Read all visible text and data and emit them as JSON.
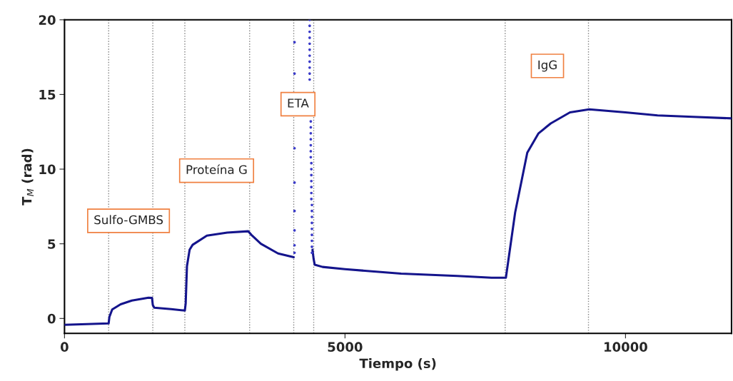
{
  "chart_data": {
    "type": "line",
    "xlabel": "Tiempo (s)",
    "ylabel": "T$_{M}$ (rad)",
    "xlim": [
      0,
      11890
    ],
    "xticks": [
      0,
      5000,
      10000
    ],
    "ylim": [
      -1,
      20
    ],
    "yticks": [
      0,
      5,
      10,
      15,
      20
    ],
    "grid": false,
    "series": [
      {
        "color": "#14148c",
        "x": [
          0,
          400,
          787,
          800,
          850,
          1000,
          1200,
          1497,
          1560,
          1574,
          1600,
          1900,
          2145,
          2160,
          2183,
          2230,
          2284,
          2538,
          2900,
          3274,
          3330,
          3500,
          3807,
          4086,
          null,
          4420,
          4440,
          4460,
          4600,
          5000,
          6000,
          7000,
          7614,
          7868,
          8033,
          8249,
          8450,
          8667,
          9010,
          9353,
          10000,
          10571,
          11200,
          11890
        ],
        "values": [
          -0.43,
          -0.38,
          -0.33,
          0.1,
          0.6,
          0.95,
          1.2,
          1.39,
          1.38,
          0.9,
          0.72,
          0.62,
          0.53,
          1.0,
          3.5,
          4.6,
          4.93,
          5.55,
          5.75,
          5.84,
          5.6,
          5.0,
          4.35,
          4.1,
          null,
          4.6,
          4.0,
          3.6,
          3.45,
          3.3,
          3.0,
          2.85,
          2.73,
          2.73,
          7.1,
          11.1,
          12.4,
          13.06,
          13.8,
          14.0,
          13.8,
          13.6,
          13.5,
          13.4
        ]
      },
      {
        "type": "scatter",
        "color": "#3a3ac8",
        "marker": "circle",
        "x": [
          4100,
          4100,
          4100,
          4100,
          4100,
          4100,
          4100,
          4100,
          4370,
          4370,
          4370,
          4370,
          4370,
          4370,
          4370,
          4370,
          4370,
          4370,
          4370,
          4390,
          4390,
          4390,
          4390,
          4390,
          4390,
          4390,
          4400,
          4400,
          4400,
          4400,
          4400,
          4400,
          4400,
          4410,
          4410,
          4410,
          4410,
          4410,
          4410,
          4410,
          4410,
          4410
        ],
        "values": [
          18.5,
          16.4,
          11.4,
          9.1,
          7.2,
          5.9,
          4.9,
          4.4,
          20.0,
          19.6,
          19.2,
          18.8,
          18.4,
          18.0,
          17.6,
          17.2,
          16.8,
          16.4,
          16.0,
          13.2,
          12.8,
          12.4,
          12.0,
          11.6,
          11.2,
          10.8,
          10.4,
          10.0,
          9.6,
          9.2,
          8.8,
          8.4,
          8.0,
          7.6,
          7.2,
          6.8,
          6.4,
          6.0,
          5.6,
          5.2,
          4.8,
          4.4
        ]
      }
    ],
    "ref_lines": [
      {
        "axis": "x",
        "value": 787,
        "color": "#808080",
        "line_style": "dotted"
      },
      {
        "axis": "x",
        "value": 1574,
        "color": "#808080",
        "line_style": "dotted"
      },
      {
        "axis": "x",
        "value": 2145,
        "color": "#808080",
        "line_style": "dotted"
      },
      {
        "axis": "x",
        "value": 3300,
        "color": "#808080",
        "line_style": "dotted"
      },
      {
        "axis": "x",
        "value": 4086,
        "color": "#808080",
        "line_style": "dotted"
      },
      {
        "axis": "x",
        "value": 4442,
        "color": "#808080",
        "line_style": "dotted"
      },
      {
        "axis": "x",
        "value": 7855,
        "color": "#808080",
        "line_style": "dotted"
      },
      {
        "axis": "x",
        "value": 9340,
        "color": "#808080",
        "line_style": "dotted"
      }
    ],
    "annotations": [
      "Sulfo-GMBS",
      "Proteína G",
      "ETA",
      "IgG"
    ],
    "legend": false
  }
}
